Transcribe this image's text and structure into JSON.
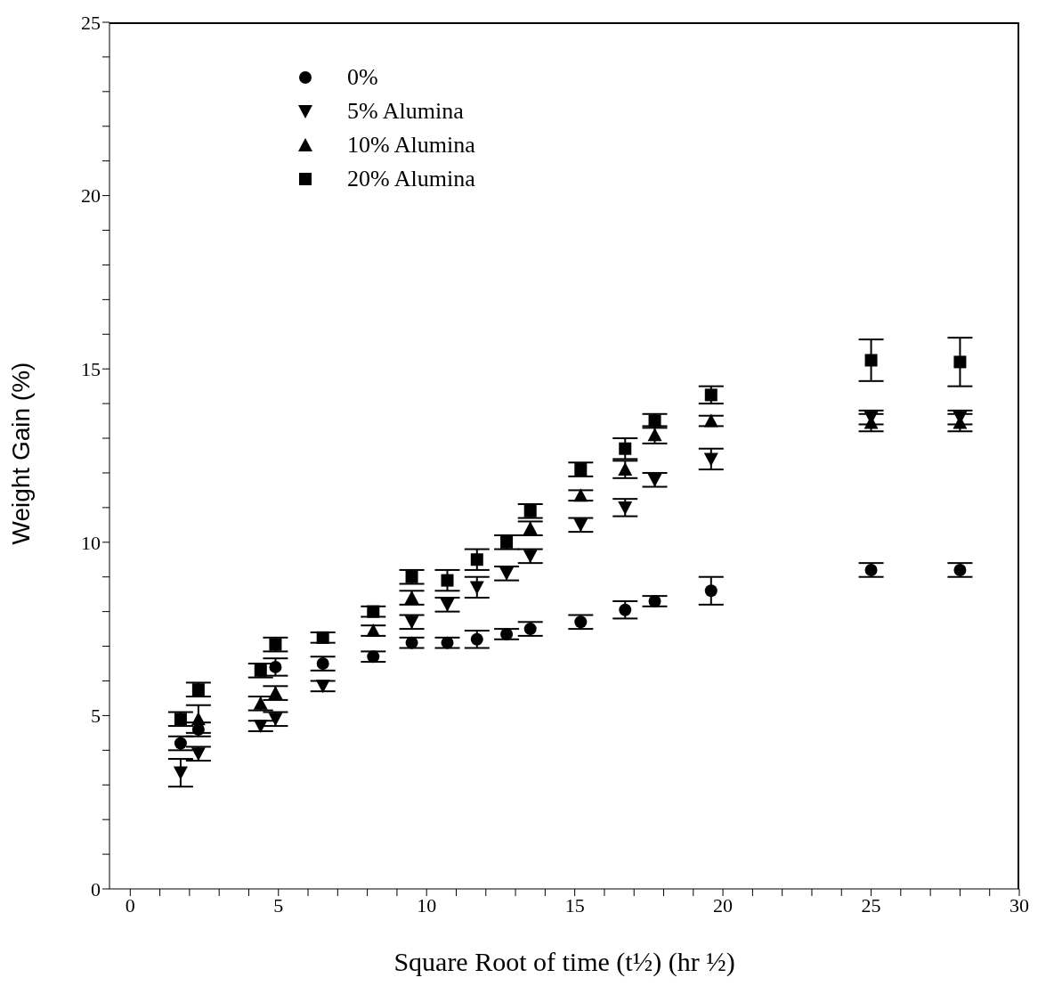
{
  "chart_data": {
    "type": "scatter",
    "xlabel": "Square Root of time (t½) (hr ½)",
    "ylabel": "Weight  Gain (%)",
    "x": [
      1.7,
      2.3,
      4.4,
      4.9,
      6.5,
      8.2,
      9.5,
      10.7,
      11.7,
      12.7,
      13.5,
      15.2,
      16.7,
      17.7,
      19.6,
      25,
      28
    ],
    "series": [
      {
        "name": "0%",
        "color": "#000000",
        "marker": "circle",
        "values": [
          4.2,
          4.6,
          null,
          6.4,
          6.5,
          6.7,
          7.1,
          7.1,
          7.2,
          7.35,
          7.5,
          7.7,
          8.05,
          8.3,
          8.6,
          9.2,
          9.2
        ],
        "errors": [
          0.2,
          0.2,
          null,
          0.25,
          0.2,
          0.15,
          0.15,
          0.15,
          0.25,
          0.15,
          0.2,
          0.2,
          0.25,
          0.15,
          0.4,
          0.2,
          0.2
        ]
      },
      {
        "name": "5% Alumina",
        "color": "#000000",
        "marker": "triangle-down",
        "values": [
          3.35,
          3.9,
          4.7,
          4.9,
          5.85,
          null,
          7.7,
          8.2,
          8.7,
          9.1,
          9.6,
          10.5,
          11.0,
          11.8,
          12.4,
          13.6,
          13.6
        ],
        "errors": [
          0.4,
          0.2,
          0.15,
          0.2,
          0.15,
          null,
          0.2,
          0.2,
          0.3,
          0.2,
          0.2,
          0.2,
          0.25,
          0.2,
          0.3,
          0.2,
          0.2
        ]
      },
      {
        "name": "10% Alumina",
        "color": "#000000",
        "marker": "triangle",
        "values": [
          null,
          4.9,
          5.35,
          5.65,
          null,
          7.45,
          8.4,
          null,
          null,
          null,
          10.4,
          11.35,
          12.1,
          13.1,
          13.5,
          13.45,
          13.45
        ],
        "errors": [
          null,
          0.4,
          0.2,
          0.2,
          null,
          0.15,
          0.2,
          null,
          null,
          null,
          0.2,
          0.15,
          0.25,
          0.25,
          0.15,
          0.25,
          0.25
        ]
      },
      {
        "name": "20% Alumina",
        "color": "#000000",
        "marker": "square",
        "values": [
          4.9,
          5.75,
          6.3,
          7.05,
          7.25,
          8.0,
          9.0,
          8.9,
          9.5,
          10.0,
          10.9,
          12.1,
          12.7,
          13.5,
          14.25,
          15.25,
          15.2
        ],
        "errors": [
          0.2,
          0.2,
          0.2,
          0.2,
          0.15,
          0.15,
          0.2,
          0.3,
          0.3,
          0.2,
          0.2,
          0.2,
          0.3,
          0.2,
          0.25,
          0.6,
          0.7
        ]
      }
    ],
    "xlim": [
      -0.7,
      30
    ],
    "xticks": [
      0,
      {
        "value": 1,
        "label": null
      },
      {
        "value": 2,
        "label": null
      },
      {
        "value": 3,
        "label": null
      },
      {
        "value": 4,
        "label": null
      },
      5,
      {
        "value": 6,
        "label": null
      },
      {
        "value": 7,
        "label": null
      },
      {
        "value": 8,
        "label": null
      },
      {
        "value": 9,
        "label": null
      },
      10,
      {
        "value": 11,
        "label": null
      },
      {
        "value": 12,
        "label": null
      },
      {
        "value": 13,
        "label": null
      },
      {
        "value": 14,
        "label": null
      },
      15,
      {
        "value": 16,
        "label": null
      },
      {
        "value": 17,
        "label": null
      },
      {
        "value": 18,
        "label": null
      },
      {
        "value": 19,
        "label": null
      },
      20,
      {
        "value": 21,
        "label": null
      },
      {
        "value": 22,
        "label": null
      },
      {
        "value": 23,
        "label": null
      },
      {
        "value": 24,
        "label": null
      },
      25,
      {
        "value": 26,
        "label": null
      },
      {
        "value": 27,
        "label": null
      },
      {
        "value": 28,
        "label": null
      },
      {
        "value": 29,
        "label": null
      },
      30
    ],
    "ylim": [
      0,
      25
    ],
    "yticks": [
      0,
      {
        "value": 1,
        "label": null
      },
      {
        "value": 2,
        "label": null
      },
      {
        "value": 3,
        "label": null
      },
      {
        "value": 4,
        "label": null
      },
      5,
      {
        "value": 6,
        "label": null
      },
      {
        "value": 7,
        "label": null
      },
      {
        "value": 8,
        "label": null
      },
      {
        "value": 9,
        "label": null
      },
      10,
      {
        "value": 11,
        "label": null
      },
      {
        "value": 12,
        "label": null
      },
      {
        "value": 13,
        "label": null
      },
      {
        "value": 14,
        "label": null
      },
      15,
      {
        "value": 16,
        "label": null
      },
      {
        "value": 17,
        "label": null
      },
      {
        "value": 18,
        "label": null
      },
      {
        "value": 19,
        "label": null
      },
      20,
      {
        "value": 21,
        "label": null
      },
      {
        "value": 22,
        "label": null
      },
      {
        "value": 23,
        "label": null
      },
      {
        "value": 24,
        "label": null
      },
      25
    ],
    "grid": false,
    "legend": "top left"
  }
}
